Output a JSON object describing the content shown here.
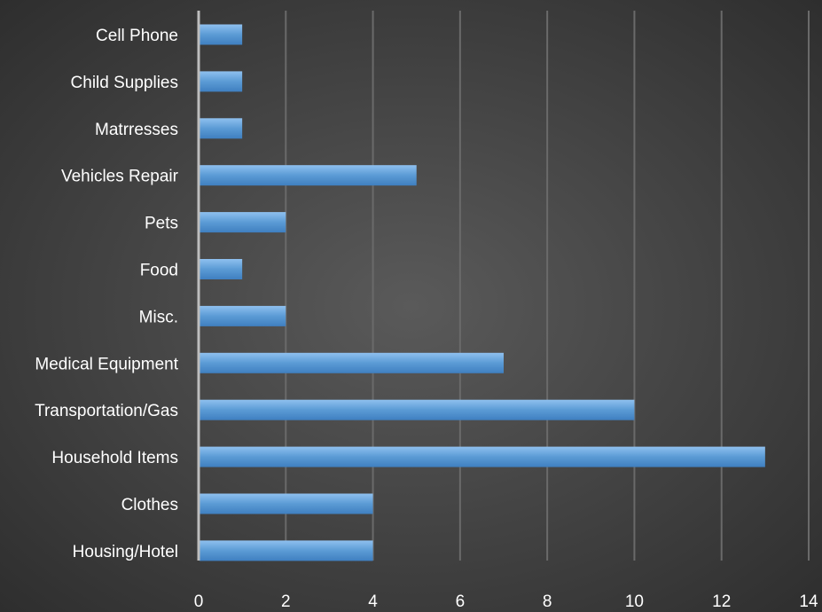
{
  "chart_data": {
    "type": "bar",
    "orientation": "horizontal",
    "title": "",
    "xlabel": "",
    "ylabel": "",
    "categories": [
      "Housing/Hotel",
      "Clothes",
      "Household Items",
      "Transportation/Gas",
      "Medical Equipment",
      "Misc.",
      "Food",
      "Pets",
      "Vehicles Repair",
      "Matrresses",
      "Child Supplies",
      "Cell Phone"
    ],
    "values": [
      4,
      4,
      13,
      10,
      7,
      2,
      1,
      2,
      5,
      1,
      1,
      1
    ],
    "xlim": [
      0,
      14
    ],
    "xticks": [
      "0",
      "2",
      "4",
      "6",
      "8",
      "10",
      "12",
      "14"
    ],
    "grid": true,
    "legend": "none",
    "bar_color": "#5b9bd5",
    "background_color": "#404040"
  }
}
